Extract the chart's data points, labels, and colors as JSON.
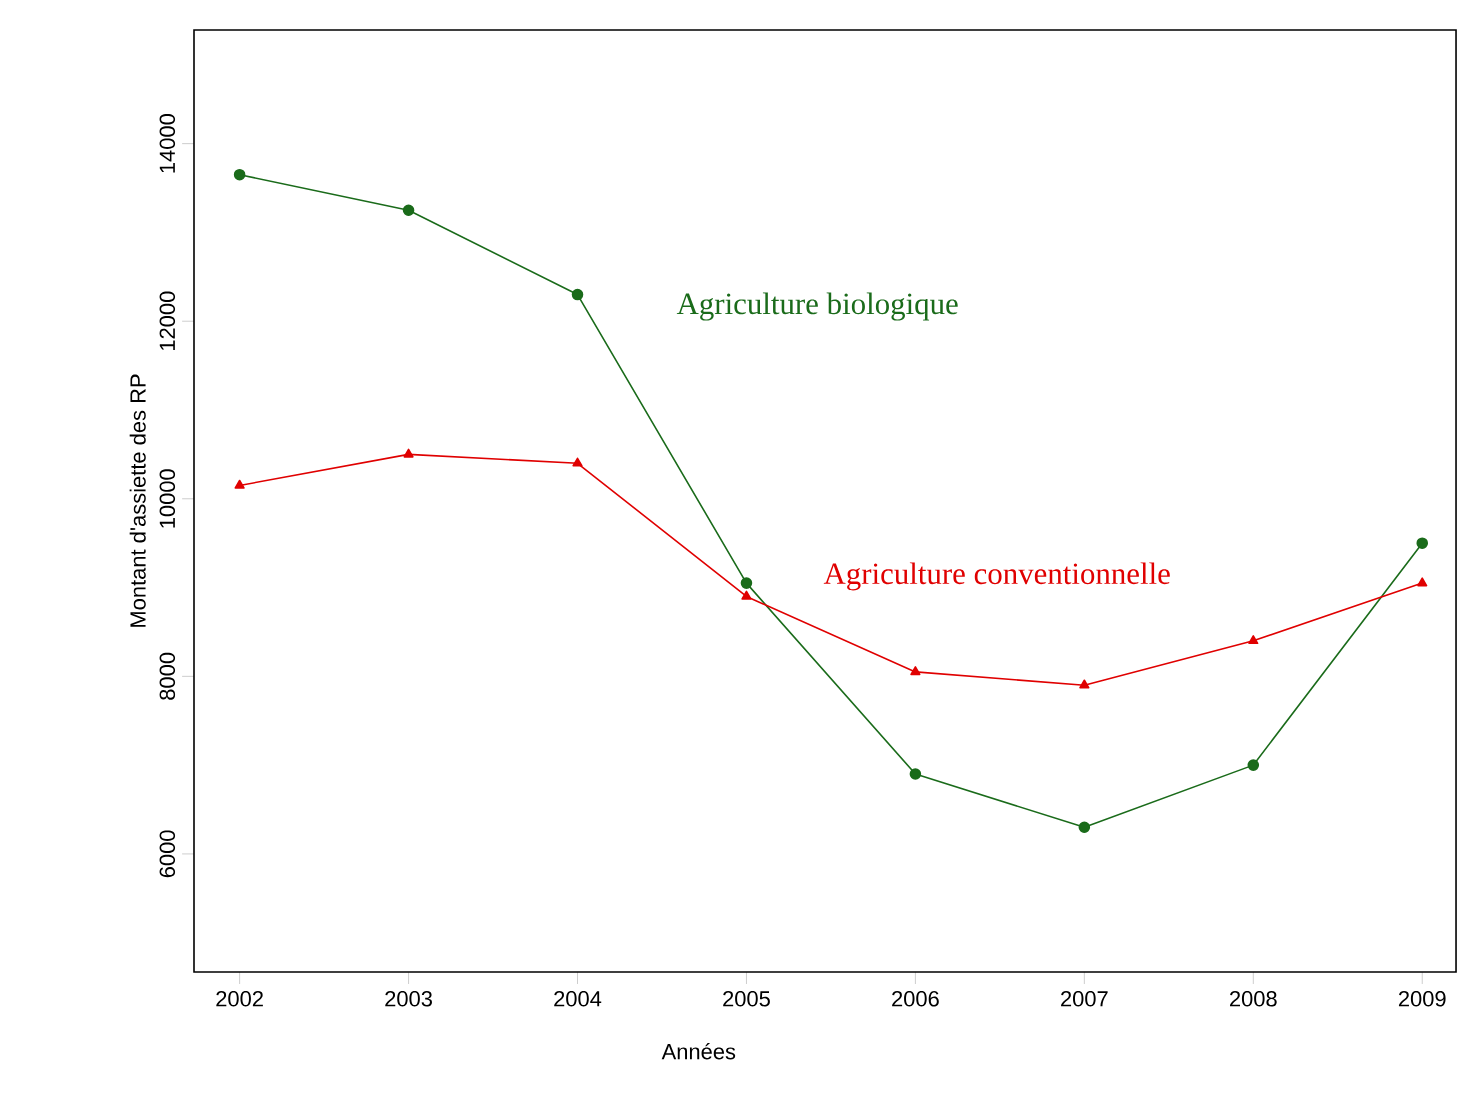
{
  "chart_data": {
    "type": "line",
    "xlabel": "Années",
    "ylabel": "Montant d'assiette des RP",
    "x": [
      2002,
      2003,
      2004,
      2005,
      2006,
      2007,
      2008,
      2009
    ],
    "series": [
      {
        "name": "Agriculture biologique",
        "color": "#1a6b1a",
        "marker": "circle",
        "values": [
          13650,
          13250,
          12300,
          9050,
          6900,
          6300,
          7000,
          9500
        ]
      },
      {
        "name": "Agriculture conventionnelle",
        "color": "#e00000",
        "marker": "triangle",
        "values": [
          10150,
          10500,
          10400,
          8900,
          8050,
          7900,
          8400,
          9050
        ]
      }
    ],
    "xlim": [
      2001.73,
      2009.2
    ],
    "ylim": [
      4670,
      15280
    ],
    "xticks": [
      2002,
      2003,
      2004,
      2005,
      2006,
      2007,
      2008,
      2009
    ],
    "yticks": [
      6000,
      8000,
      10000,
      12000,
      14000
    ],
    "grid": false,
    "legend": false,
    "line_style": "solid"
  }
}
